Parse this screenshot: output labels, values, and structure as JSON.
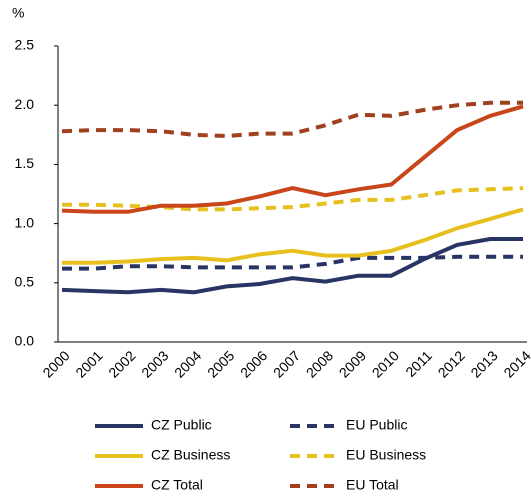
{
  "chart_data": {
    "type": "line",
    "y_label": "%",
    "categories": [
      "2000",
      "2001",
      "2002",
      "2003",
      "2004",
      "2005",
      "2006",
      "2007",
      "2008",
      "2009",
      "2010",
      "2011",
      "2012",
      "2013",
      "2014"
    ],
    "ylim": [
      0,
      2.5
    ],
    "yticks": [
      {
        "value": 0,
        "label": "0.0"
      },
      0.5,
      {
        "value": 1,
        "label": "1.0"
      },
      1.5,
      {
        "value": 2,
        "label": "2.0"
      },
      2.5
    ],
    "grid": false,
    "series": [
      {
        "name": "CZ Public",
        "color": "#283464",
        "dashed": false,
        "values": [
          0.44,
          0.43,
          0.42,
          0.44,
          0.42,
          0.47,
          0.49,
          0.54,
          0.51,
          0.56,
          0.56,
          0.7,
          0.82,
          0.87,
          0.87
        ]
      },
      {
        "name": "EU Public",
        "color": "#283464",
        "dashed": true,
        "values": [
          0.62,
          0.62,
          0.64,
          0.64,
          0.63,
          0.63,
          0.63,
          0.63,
          0.66,
          0.71,
          0.71,
          0.71,
          0.72,
          0.72,
          0.72
        ]
      },
      {
        "name": "CZ Business",
        "color": "#e8c01e",
        "dashed": false,
        "values": [
          0.67,
          0.67,
          0.68,
          0.7,
          0.71,
          0.69,
          0.74,
          0.77,
          0.73,
          0.73,
          0.77,
          0.86,
          0.96,
          1.04,
          1.12
        ]
      },
      {
        "name": "EU Business",
        "color": "#e8c01e",
        "dashed": true,
        "values": [
          1.16,
          1.16,
          1.15,
          1.14,
          1.12,
          1.12,
          1.13,
          1.14,
          1.17,
          1.2,
          1.2,
          1.24,
          1.28,
          1.29,
          1.3
        ]
      },
      {
        "name": "CZ Total",
        "color": "#c8461a",
        "dashed": false,
        "values": [
          1.11,
          1.1,
          1.1,
          1.15,
          1.15,
          1.17,
          1.23,
          1.3,
          1.24,
          1.29,
          1.33,
          1.56,
          1.79,
          1.91,
          1.99
        ]
      },
      {
        "name": "EU Total",
        "color": "#a0401e",
        "dashed": true,
        "values": [
          1.78,
          1.79,
          1.79,
          1.78,
          1.75,
          1.74,
          1.76,
          1.76,
          1.83,
          1.92,
          1.91,
          1.96,
          2.0,
          2.02,
          2.02
        ]
      }
    ]
  }
}
